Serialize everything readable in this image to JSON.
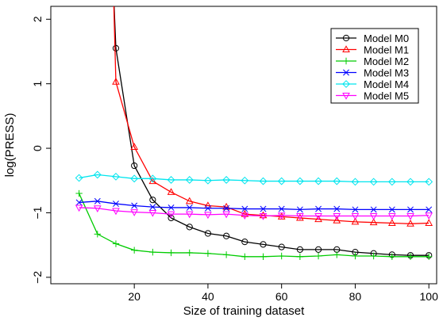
{
  "chart_data": {
    "type": "line",
    "title": "",
    "xlabel": "Size of training dataset",
    "ylabel": "log(PRESS)",
    "xlim": [
      0,
      100
    ],
    "ylim": [
      -2.1,
      2.2
    ],
    "xticks": [
      20,
      40,
      60,
      80,
      100
    ],
    "yticks": [
      -2,
      -1,
      0,
      1,
      2
    ],
    "grid": false,
    "legend_position": "top-right",
    "x": [
      5,
      10,
      15,
      20,
      25,
      30,
      35,
      40,
      45,
      50,
      55,
      60,
      65,
      70,
      75,
      80,
      85,
      90,
      95,
      100
    ],
    "series": [
      {
        "name": "Model M0",
        "color": "#000000",
        "marker": "circle",
        "values": [
          null,
          null,
          1.55,
          -0.27,
          -0.8,
          -1.08,
          -1.22,
          -1.32,
          -1.36,
          -1.45,
          -1.49,
          -1.53,
          -1.57,
          -1.57,
          -1.57,
          -1.61,
          -1.63,
          -1.65,
          -1.66,
          -1.66
        ]
      },
      {
        "name": "Model M1",
        "color": "#ff0000",
        "marker": "triangle-up",
        "values": [
          null,
          null,
          1.03,
          0.02,
          -0.51,
          -0.68,
          -0.82,
          -0.89,
          -0.91,
          -1.02,
          -1.04,
          -1.06,
          -1.08,
          -1.1,
          -1.12,
          -1.14,
          -1.15,
          -1.16,
          -1.17,
          -1.16
        ]
      },
      {
        "name": "Model M2",
        "color": "#00cc00",
        "marker": "plus",
        "values": [
          -0.7,
          -1.33,
          -1.48,
          -1.58,
          -1.61,
          -1.62,
          -1.62,
          -1.63,
          -1.65,
          -1.68,
          -1.68,
          -1.67,
          -1.68,
          -1.67,
          -1.65,
          -1.67,
          -1.67,
          -1.68,
          -1.68,
          -1.68
        ]
      },
      {
        "name": "Model M3",
        "color": "#0000ff",
        "marker": "x",
        "values": [
          -0.84,
          -0.82,
          -0.86,
          -0.89,
          -0.91,
          -0.92,
          -0.92,
          -0.93,
          -0.93,
          -0.94,
          -0.94,
          -0.94,
          -0.95,
          -0.94,
          -0.94,
          -0.95,
          -0.95,
          -0.95,
          -0.95,
          -0.95
        ]
      },
      {
        "name": "Model M4",
        "color": "#00e5ee",
        "marker": "diamond",
        "values": [
          -0.46,
          -0.41,
          -0.44,
          -0.47,
          -0.47,
          -0.49,
          -0.49,
          -0.5,
          -0.49,
          -0.5,
          -0.51,
          -0.51,
          -0.51,
          -0.51,
          -0.51,
          -0.52,
          -0.52,
          -0.52,
          -0.52,
          -0.52
        ]
      },
      {
        "name": "Model M5",
        "color": "#ff00ff",
        "marker": "triangle-down",
        "values": [
          -0.92,
          -0.93,
          -0.97,
          -0.99,
          -1.0,
          -1.02,
          -1.02,
          -1.03,
          -1.02,
          -1.04,
          -1.05,
          -1.04,
          -1.05,
          -1.05,
          -1.05,
          -1.05,
          -1.05,
          -1.05,
          -1.05,
          -1.04
        ]
      }
    ],
    "notes": "Model M0 and Model M1 rise above the top of the plotting region for the smallest training sizes."
  }
}
